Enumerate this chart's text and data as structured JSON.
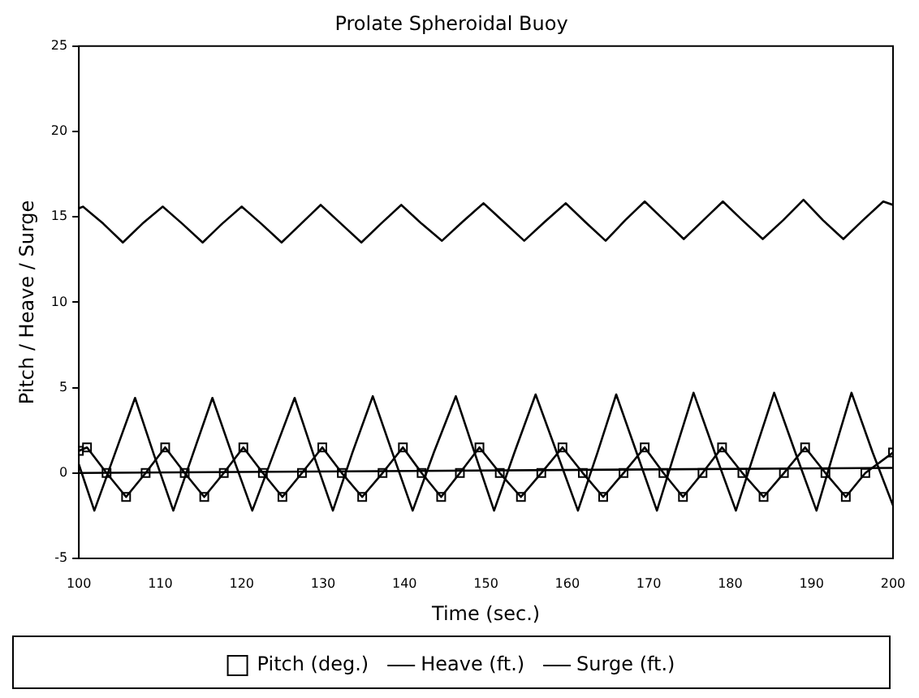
{
  "chart_data": {
    "type": "line",
    "title": "Prolate Spheroidal Buoy",
    "xlabel": "Time (sec.)",
    "ylabel": "Pitch / Heave / Surge",
    "xlim": [
      100,
      200
    ],
    "xticks": [
      100,
      110,
      120,
      130,
      140,
      150,
      160,
      170,
      180,
      190,
      200
    ],
    "ylim": [
      -5,
      25
    ],
    "yticks": [
      -5,
      0,
      5,
      10,
      15,
      20,
      25
    ],
    "grid": false,
    "legend": "bottom",
    "series": [
      {
        "name": "Pitch (deg.)",
        "color": "#000000",
        "marker": "square",
        "x": [
          100,
          101.0,
          103.4,
          105.8,
          108.2,
          110.6,
          113.0,
          115.4,
          117.8,
          120.2,
          122.6,
          125.0,
          127.4,
          129.9,
          132.3,
          134.8,
          137.3,
          139.8,
          142.1,
          144.5,
          146.8,
          149.2,
          151.7,
          154.3,
          156.8,
          159.4,
          161.9,
          164.4,
          166.9,
          169.5,
          171.8,
          174.2,
          176.6,
          179.0,
          181.5,
          184.1,
          186.6,
          189.2,
          191.7,
          194.2,
          196.6,
          200
        ],
        "values": [
          1.3,
          1.5,
          0,
          -1.4,
          0,
          1.5,
          0,
          -1.4,
          0,
          1.5,
          0,
          -1.4,
          0,
          1.5,
          0,
          -1.4,
          0,
          1.5,
          0,
          -1.4,
          0,
          1.5,
          0,
          -1.4,
          0,
          1.5,
          0,
          -1.4,
          0,
          1.5,
          0,
          -1.4,
          0,
          1.5,
          0,
          -1.4,
          0,
          1.5,
          0,
          -1.4,
          0,
          1.2
        ]
      },
      {
        "name": "Heave (ft.)",
        "color": "#000000",
        "marker": "none",
        "x": [
          100,
          100.5,
          103,
          105.4,
          107.8,
          110.3,
          112.7,
          115.2,
          117.6,
          120.0,
          122.4,
          124.9,
          127.3,
          129.7,
          132.2,
          134.7,
          137.1,
          139.6,
          142.1,
          144.6,
          147.1,
          149.7,
          152.2,
          154.7,
          157.2,
          159.8,
          162.2,
          164.7,
          167.1,
          169.5,
          171.9,
          174.3,
          176.7,
          179.1,
          181.5,
          184.0,
          186.5,
          189.0,
          191.4,
          193.9,
          196.3,
          198.8,
          200
        ],
        "values": [
          15.5,
          15.6,
          14.6,
          13.5,
          14.6,
          15.6,
          14.6,
          13.5,
          14.6,
          15.6,
          14.6,
          13.5,
          14.6,
          15.7,
          14.6,
          13.5,
          14.6,
          15.7,
          14.6,
          13.6,
          14.7,
          15.8,
          14.7,
          13.6,
          14.7,
          15.8,
          14.7,
          13.6,
          14.8,
          15.9,
          14.8,
          13.7,
          14.8,
          15.9,
          14.8,
          13.7,
          14.8,
          16.0,
          14.8,
          13.7,
          14.8,
          15.9,
          15.7
        ]
      },
      {
        "name": "Surge (ft.)",
        "color": "#000000",
        "marker": "none",
        "x": [
          100,
          101.9,
          104.4,
          106.9,
          109.2,
          111.6,
          114.0,
          116.4,
          118.8,
          121.3,
          123.9,
          126.5,
          128.8,
          131.2,
          133.6,
          136.1,
          138.5,
          141.0,
          143.6,
          146.3,
          148.6,
          151.0,
          153.5,
          156.1,
          158.7,
          161.3,
          163.7,
          166.0,
          168.5,
          171.0,
          173.2,
          175.5,
          178.1,
          180.7,
          183.0,
          185.4,
          188.0,
          190.6,
          192.7,
          194.9,
          197.5,
          200
        ],
        "values": [
          0.5,
          -2.2,
          1.1,
          4.4,
          1.1,
          -2.2,
          1.1,
          4.4,
          1.1,
          -2.2,
          1.1,
          4.4,
          1.1,
          -2.2,
          1.2,
          4.5,
          1.2,
          -2.2,
          1.2,
          4.5,
          1.2,
          -2.2,
          1.2,
          4.6,
          1.2,
          -2.2,
          1.2,
          4.6,
          1.2,
          -2.2,
          1.2,
          4.7,
          1.2,
          -2.2,
          1.2,
          4.7,
          1.2,
          -2.2,
          1.2,
          4.7,
          1.2,
          -1.9
        ]
      },
      {
        "color": "#000000",
        "marker": "none",
        "x": [
          100,
          200
        ],
        "values": [
          0,
          0.3
        ]
      }
    ]
  }
}
